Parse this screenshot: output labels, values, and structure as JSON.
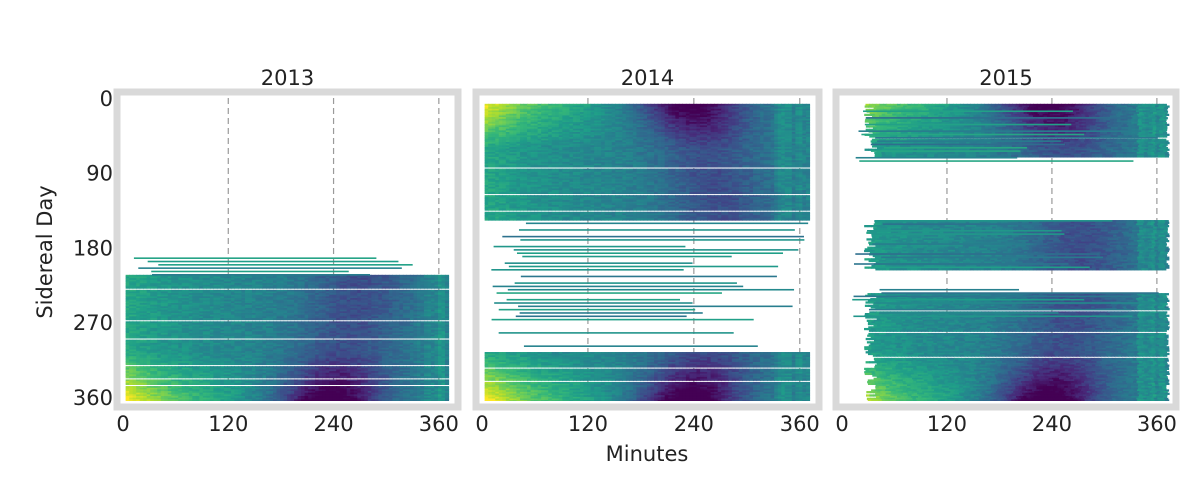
{
  "figure": {
    "xlabel": "Minutes",
    "ylabel": "Sidereal Day"
  },
  "chart_data": [
    {
      "type": "heatmap",
      "title": "2013",
      "x_ticks": [
        0,
        120,
        240,
        360
      ],
      "y_ticks": [
        0,
        90,
        180,
        270,
        360
      ],
      "xlim": [
        0,
        375
      ],
      "ylim": [
        0,
        365
      ],
      "colormap": "viridis",
      "grid": true,
      "sparse_rows": [
        [
          192,
          212
        ]
      ],
      "dense_rows": [
        [
          213,
          364
        ]
      ],
      "features": {
        "dense_start_minute": 3,
        "dense_end_minute": 370,
        "yellow_band_days": [
          335,
          364
        ],
        "dark_trough_days": [
          320,
          360
        ]
      }
    },
    {
      "type": "heatmap",
      "title": "2014",
      "x_ticks": [
        0,
        120,
        240,
        360
      ],
      "y_ticks": [
        0,
        90,
        180,
        270,
        360
      ],
      "xlim": [
        0,
        375
      ],
      "ylim": [
        0,
        365
      ],
      "colormap": "viridis",
      "grid": true,
      "sparse_rows": [
        [
          150,
          305
        ]
      ],
      "dense_rows": [
        [
          7,
          145
        ],
        [
          306,
          364
        ]
      ],
      "features": {
        "yellow_band_days": [
          5,
          40
        ],
        "dark_trough_days": [
          5,
          30
        ]
      }
    },
    {
      "type": "heatmap",
      "title": "2015",
      "x_ticks": [
        0,
        120,
        240,
        360
      ],
      "y_ticks": [
        0,
        90,
        180,
        270,
        360
      ],
      "xlim": [
        0,
        375
      ],
      "ylim": [
        0,
        365
      ],
      "colormap": "viridis",
      "grid": true,
      "sparse_rows": [
        [
          7,
          90
        ],
        [
          147,
          205
        ],
        [
          230,
          262
        ]
      ],
      "dense_rows": [
        [
          7,
          70
        ],
        [
          147,
          205
        ],
        [
          235,
          364
        ]
      ],
      "features": {
        "yellow_band_days": [
          330,
          364
        ],
        "dark_trough_days": [
          335,
          364
        ]
      }
    }
  ],
  "colors": {
    "frame": "#d9d9d9",
    "gridline": "#9a9a9a",
    "text": "#222222"
  }
}
